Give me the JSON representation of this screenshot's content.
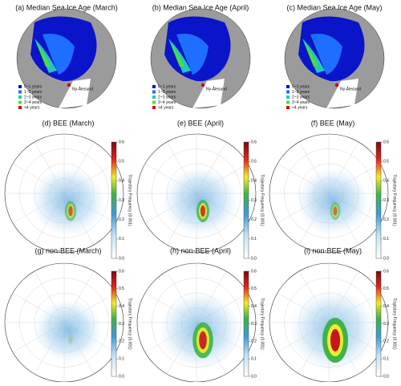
{
  "top_row": {
    "panels": [
      {
        "title": "(a) Median Sea Ice Age (March)"
      },
      {
        "title": "(b) Median Sea Ice Age (April)"
      },
      {
        "title": "(c) Median Sea Ice Age (May)"
      }
    ],
    "legend": [
      {
        "label": "0~1 years",
        "color": "#0a14c8"
      },
      {
        "label": "1~2 years",
        "color": "#1e6eff"
      },
      {
        "label": "2~3 years",
        "color": "#20c8c0"
      },
      {
        "label": "3~4 years",
        "color": "#50dc3c"
      },
      {
        "label": ">4 years",
        "color": "#cc1010"
      }
    ],
    "station": "Ny-Ålesund"
  },
  "frequency_rows": {
    "panels": [
      {
        "title": "(d) BEE (March)"
      },
      {
        "title": "(e) BEE (April)"
      },
      {
        "title": "(f) BEE (May)"
      },
      {
        "title": "(g) non-BEE (March)"
      },
      {
        "title": "(h) non-BEE (April)"
      },
      {
        "title": "(i) non-BEE (May)"
      }
    ],
    "colorbar": {
      "label": "Trajectory Frequency (0.001)",
      "lim": [
        0,
        0.6
      ],
      "ticks": [
        {
          "value": 0,
          "label": "0.0"
        },
        {
          "value": 0.1,
          "label": "0.1"
        },
        {
          "value": 0.2,
          "label": "0.2"
        },
        {
          "value": 0.3,
          "label": "0.3"
        },
        {
          "value": 0.4,
          "label": "0.4"
        },
        {
          "value": 0.5,
          "label": "0.5"
        },
        {
          "value": 0.6,
          "label": "0.6"
        }
      ]
    }
  }
}
